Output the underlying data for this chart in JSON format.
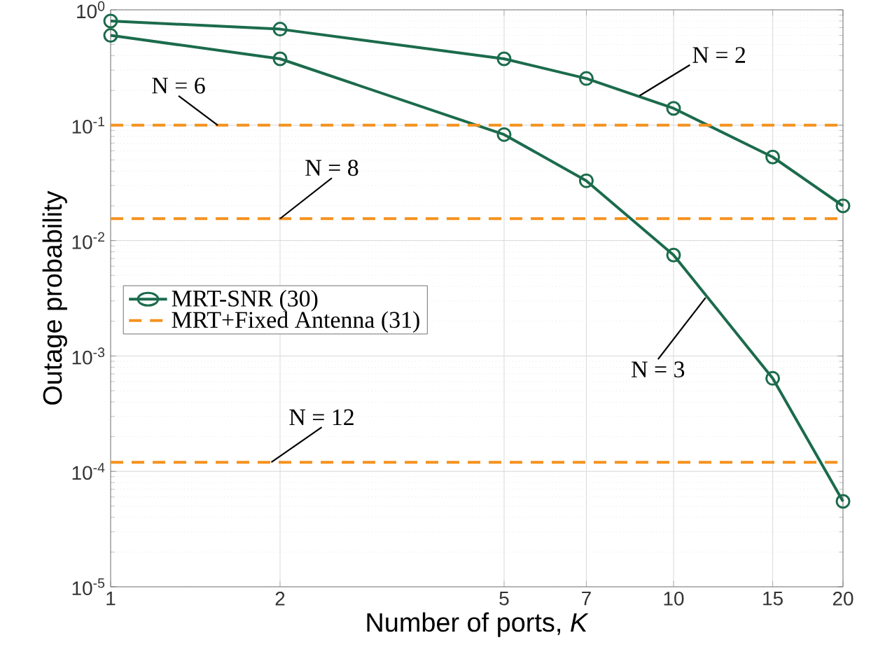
{
  "chart_data": {
    "type": "line",
    "xlabel": "Number of ports, *K*",
    "ylabel": "Outage probability",
    "log": "xy",
    "grid": true,
    "legend": "left",
    "xlim": [
      1,
      20
    ],
    "ylim": [
      1e-05,
      1
    ],
    "xticks": [
      1,
      2,
      5,
      7,
      10,
      15,
      20
    ],
    "yticks": [
      {
        "value": 1e-05,
        "label": "10$^{-5}$"
      },
      {
        "value": 0.0001,
        "label": "10$^{-4}$"
      },
      {
        "value": 0.001,
        "label": "10$^{-3}$"
      },
      {
        "value": 0.01,
        "label": "10$^{-2}$"
      },
      {
        "value": 0.1,
        "label": "10$^{-1}$"
      },
      {
        "value": 1,
        "label": "10$^{0}$"
      }
    ],
    "x": [
      1,
      2,
      5,
      7,
      10,
      15,
      20
    ],
    "series": [
      {
        "name": "MRT-SNR (30)",
        "color": "#1b6b4c",
        "marker": "circle",
        "line_style": "solid",
        "values": [
          0.8,
          0.68,
          0.376,
          0.254,
          0.14,
          0.053,
          0.02
        ]
      },
      {
        "color": "#1b6b4c",
        "marker": "circle",
        "line_style": "solid",
        "values": [
          0.6,
          0.376,
          0.083,
          0.033,
          0.0075,
          0.00064,
          5.5e-05
        ]
      },
      {
        "name": "MRT+Fixed Antenna (31)",
        "color": "#f5921e",
        "marker": "none",
        "line_style": "dashed",
        "values": [
          0.1,
          0.1,
          0.1,
          0.1,
          0.1,
          0.1,
          0.1
        ]
      },
      {
        "color": "#f5921e",
        "marker": "none",
        "line_style": "dashed",
        "values": [
          0.0155,
          0.0155,
          0.0155,
          0.0155,
          0.0155,
          0.0155,
          0.0155
        ]
      },
      {
        "color": "#f5921e",
        "marker": "none",
        "line_style": "dashed",
        "values": [
          0.00012,
          0.00012,
          0.00012,
          0.00012,
          0.00012,
          0.00012,
          0.00012
        ]
      }
    ],
    "annotations": [
      {
        "text": "N = 2",
        "x": 8.7,
        "y": 0.18
      },
      {
        "text": "N = 6",
        "x": 1.55,
        "y": 0.1
      },
      {
        "text": "N = 8",
        "x": 2,
        "y": 0.0155
      },
      {
        "text": "N = 12",
        "x": 1.93,
        "y": 0.00012
      },
      {
        "text": "N = 3",
        "x": 11.4,
        "y": 0.0032
      }
    ]
  }
}
